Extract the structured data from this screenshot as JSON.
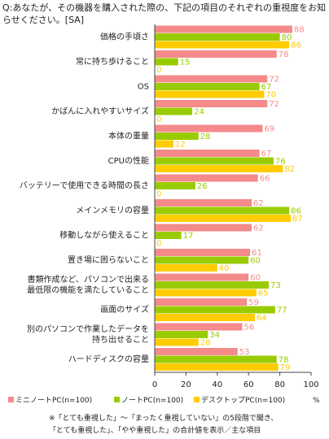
{
  "question": "Q:あなたが、その機器を購入された際の、下記の項目のそれぞれの重視度をお知らせください。[SA]",
  "chart_data": {
    "type": "bar",
    "orientation": "horizontal",
    "categories": [
      "価格の手頃さ",
      "常に持ち歩けること",
      "OS",
      "かばんに入れやすいサイズ",
      "本体の重量",
      "CPUの性能",
      "バッテリーで使用できる時間の長さ",
      "メインメモリの容量",
      "移動しながら使えること",
      "置き場に困らないこと",
      "書類作成など、パソコンで出来る最低限の機能を満たしていること",
      "画面のサイズ",
      "別のパソコンで作業したデータを持ち出せること",
      "ハードディスクの容量"
    ],
    "category_lines": [
      [
        "価格の手頃さ"
      ],
      [
        "常に持ち歩けること"
      ],
      [
        "OS"
      ],
      [
        "かばんに入れやすいサイズ"
      ],
      [
        "本体の重量"
      ],
      [
        "CPUの性能"
      ],
      [
        "バッテリーで使用できる時間の長さ"
      ],
      [
        "メインメモリの容量"
      ],
      [
        "移動しながら使えること"
      ],
      [
        "置き場に困らないこと"
      ],
      [
        "書類作成など、パソコンで出来る",
        "最低限の機能を満たしていること"
      ],
      [
        "画面のサイズ"
      ],
      [
        "別のパソコンで作業したデータを",
        "持ち出せること"
      ],
      [
        "ハードディスクの容量"
      ]
    ],
    "series": [
      {
        "name": "ミニノートPC(n=100)",
        "color": "#f48a8a",
        "values": [
          88,
          78,
          72,
          72,
          69,
          67,
          66,
          62,
          62,
          61,
          60,
          59,
          56,
          53
        ]
      },
      {
        "name": "ノートPC(n=100)",
        "color": "#99cc00",
        "values": [
          80,
          15,
          67,
          24,
          28,
          76,
          26,
          86,
          17,
          60,
          73,
          77,
          34,
          78
        ]
      },
      {
        "name": "デスクトップPC(n=100)",
        "color": "#ffcc00",
        "values": [
          86,
          0,
          70,
          0,
          12,
          82,
          0,
          87,
          0,
          40,
          65,
          64,
          28,
          79
        ]
      }
    ],
    "xlim": [
      0,
      100
    ],
    "xticks": [
      0,
      20,
      40,
      60,
      80,
      100
    ],
    "unit": "%",
    "grid": false,
    "legend_position": "bottom"
  },
  "footnote": {
    "lines": [
      "※「とても重視した」～「まったく重視していない」の5段階で聞き、",
      "「とても重視した」、「やや重視した」の合計値を表示／主な項目"
    ]
  }
}
